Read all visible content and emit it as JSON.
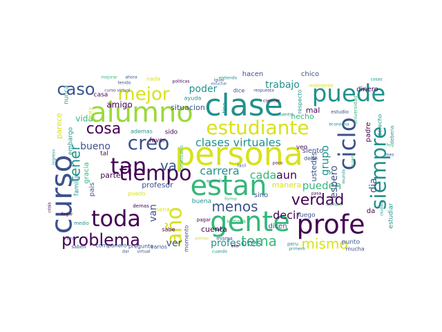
{
  "wordcloud": {
    "palette": {
      "dark_purple": "#440154",
      "indigo": "#3b528b",
      "teal": "#21918c",
      "green": "#35b779",
      "lime": "#9bd93c",
      "yellow": "#d8e219"
    },
    "words": [
      {
        "text": "persona",
        "color": "#d8e219"
      },
      {
        "text": "clase",
        "color": "#21918c"
      },
      {
        "text": "alumno",
        "color": "#9bd93c"
      },
      {
        "text": "gente",
        "color": "#35b779"
      },
      {
        "text": "profe",
        "color": "#440154"
      },
      {
        "text": "estan",
        "color": "#35b779"
      },
      {
        "text": "curso",
        "color": "#3b528b"
      },
      {
        "text": "puede",
        "color": "#21918c"
      },
      {
        "text": "estudiante",
        "color": "#d8e219"
      },
      {
        "text": "toda",
        "color": "#440154"
      },
      {
        "text": "tiempo",
        "color": "#440154"
      },
      {
        "text": "ciclo",
        "color": "#3b528b"
      },
      {
        "text": "siempre",
        "color": "#21918c"
      },
      {
        "text": "año",
        "color": "#d8e219"
      },
      {
        "text": "tan",
        "color": "#440154"
      },
      {
        "text": "creo",
        "color": "#3b528b"
      },
      {
        "text": "mejor",
        "color": "#d8e219"
      },
      {
        "text": "caso",
        "color": "#3b528b"
      },
      {
        "text": "problema",
        "color": "#440154"
      },
      {
        "text": "tener",
        "color": "#21918c"
      },
      {
        "text": "cosa",
        "color": "#440154"
      },
      {
        "text": "verdad",
        "color": "#440154"
      },
      {
        "text": "mismo",
        "color": "#d8e219"
      },
      {
        "text": "tema",
        "color": "#35b779"
      },
      {
        "text": "menos",
        "color": "#3b528b"
      },
      {
        "text": "va",
        "color": "#3b528b"
      },
      {
        "text": "clases virtuales",
        "color": "#21918c"
      },
      {
        "text": "carrera",
        "color": "#21918c"
      },
      {
        "text": "cada",
        "color": "#35b779"
      },
      {
        "text": "aun",
        "color": "#440154"
      },
      {
        "text": "pueden",
        "color": "#35b779"
      },
      {
        "text": "decir",
        "color": "#440154"
      },
      {
        "text": "grupo",
        "color": "#21918c"
      },
      {
        "text": "bueno",
        "color": "#3b528b"
      },
      {
        "text": "ver",
        "color": "#3b528b"
      },
      {
        "text": "profesores",
        "color": "#21918c"
      },
      {
        "text": "van",
        "color": "#3b528b"
      },
      {
        "text": "trabajo",
        "color": "#21918c"
      },
      {
        "text": "poder",
        "color": "#21918c"
      },
      {
        "text": "espero",
        "color": "#3b528b"
      },
      {
        "text": "dia",
        "color": "#3b528b"
      },
      {
        "text": "parece",
        "color": "#d8e219"
      },
      {
        "text": "vida",
        "color": "#35b779"
      },
      {
        "text": "amigo",
        "color": "#440154"
      },
      {
        "text": "situacion",
        "color": "#3b528b"
      },
      {
        "text": "hecho",
        "color": "#35b779"
      },
      {
        "text": "mal",
        "color": "#440154"
      },
      {
        "text": "siento",
        "color": "#3b528b"
      },
      {
        "text": "parte",
        "color": "#440154"
      },
      {
        "text": "profesor",
        "color": "#3b528b"
      },
      {
        "text": "manera",
        "color": "#d8e219"
      },
      {
        "text": "cuenta",
        "color": "#440154"
      },
      {
        "text": "ustedes",
        "color": "#3b528b"
      },
      {
        "text": "padre",
        "color": "#440154"
      },
      {
        "text": "hacen",
        "color": "#3b528b"
      },
      {
        "text": "chico",
        "color": "#3b528b"
      },
      {
        "text": "dinero",
        "color": "#440154"
      },
      {
        "text": "sino",
        "color": "#3b528b"
      },
      {
        "text": "luego",
        "color": "#3b528b"
      },
      {
        "text": "dicen",
        "color": "#3b528b"
      },
      {
        "text": "nunca",
        "color": "#21918c"
      },
      {
        "text": "casa",
        "color": "#440154"
      },
      {
        "text": "embargo",
        "color": "#21918c"
      },
      {
        "text": "familia",
        "color": "#21918c"
      },
      {
        "text": "gracia",
        "color": "#35b779"
      },
      {
        "text": "pais",
        "color": "#3b528b"
      },
      {
        "text": "favor",
        "color": "#440154"
      },
      {
        "text": "tal",
        "color": "#440154"
      },
      {
        "text": "sido",
        "color": "#440154"
      },
      {
        "text": "buena",
        "color": "#21918c"
      },
      {
        "text": "momento",
        "color": "#3b528b"
      },
      {
        "text": "compañero",
        "color": "#3b528b"
      },
      {
        "text": "pregunta",
        "color": "#3b528b"
      },
      {
        "text": "punto",
        "color": "#3b528b"
      },
      {
        "text": "mucha",
        "color": "#3b528b"
      },
      {
        "text": "veo",
        "color": "#440154"
      },
      {
        "text": "da",
        "color": "#440154"
      },
      {
        "text": "estudiar",
        "color": "#21918c"
      },
      {
        "text": "debe",
        "color": "#3b528b"
      },
      {
        "text": "nada",
        "color": "#d8e219"
      },
      {
        "text": "dice",
        "color": "#3b528b"
      },
      {
        "text": "tipo",
        "color": "#21918c"
      },
      {
        "text": "ayuda",
        "color": "#21918c"
      },
      {
        "text": "respecto",
        "color": "#21918c"
      },
      {
        "text": "ademas",
        "color": "#21918c"
      },
      {
        "text": "varios",
        "color": "#3b528b"
      },
      {
        "text": "saben",
        "color": "#3b528b"
      },
      {
        "text": "misma",
        "color": "#3b528b"
      },
      {
        "text": "sabe",
        "color": "#440154"
      },
      {
        "text": "seria",
        "color": "#d8e219"
      },
      {
        "text": "puedo",
        "color": "#d8e219"
      },
      {
        "text": "semana",
        "color": "#35b779"
      },
      {
        "text": "cuando",
        "color": "#21918c"
      },
      {
        "text": "realmente",
        "color": "#d8e219"
      },
      {
        "text": "deberia",
        "color": "#21918c"
      },
      {
        "text": "estudio",
        "color": "#3b528b"
      },
      {
        "text": "universidad",
        "color": "#35b779"
      },
      {
        "text": "derecho",
        "color": "#21918c"
      },
      {
        "text": "peru",
        "color": "#21918c"
      },
      {
        "text": "medio",
        "color": "#21918c"
      },
      {
        "text": "demas",
        "color": "#440154"
      },
      {
        "text": "pagar",
        "color": "#440154"
      },
      {
        "text": "economia",
        "color": "#21918c"
      },
      {
        "text": "primero",
        "color": "#21918c"
      },
      {
        "text": "politicas",
        "color": "#440154"
      },
      {
        "text": "tenido",
        "color": "#3b528b"
      },
      {
        "text": "ahora",
        "color": "#3b528b"
      },
      {
        "text": "pasa",
        "color": "#440154"
      },
      {
        "text": "quiero",
        "color": "#35b779"
      },
      {
        "text": "mejorar",
        "color": "#35b779"
      },
      {
        "text": "comentario",
        "color": "#35b779"
      },
      {
        "text": "ello",
        "color": "#440154"
      },
      {
        "text": "fácil",
        "color": "#3b528b"
      },
      {
        "text": "igual",
        "color": "#3b528b"
      },
      {
        "text": "virtual",
        "color": "#3b528b"
      },
      {
        "text": "dar",
        "color": "#3b528b"
      },
      {
        "text": "aprender",
        "color": "#21918c"
      },
      {
        "text": "forma",
        "color": "#35b779"
      },
      {
        "text": "pienso",
        "color": "#d8e219"
      },
      {
        "text": "escuchar",
        "color": "#3b528b"
      },
      {
        "text": "entiendo",
        "color": "#21918c"
      },
      {
        "text": "conocer",
        "color": "#440154"
      },
      {
        "text": "respuesta",
        "color": "#3b528b"
      },
      {
        "text": "encuentro",
        "color": "#21918c"
      },
      {
        "text": "ingreso",
        "color": "#21918c"
      },
      {
        "text": "cambio",
        "color": "#35b779"
      },
      {
        "text": "ciudad",
        "color": "#21918c"
      },
      {
        "text": "crisis",
        "color": "#440154"
      },
      {
        "text": "llegar",
        "color": "#440154"
      },
      {
        "text": "hora",
        "color": "#3b528b"
      },
      {
        "text": "mundo",
        "color": "#21918c"
      },
      {
        "text": "nota",
        "color": "#d8e219"
      },
      {
        "text": "curso virtual",
        "color": "#3b528b"
      },
      {
        "text": "cosas",
        "color": "#21918c"
      },
      {
        "text": "poco",
        "color": "#440154"
      },
      {
        "text": "hoy",
        "color": "#35b779"
      },
      {
        "text": "mes",
        "color": "#3b528b"
      }
    ]
  }
}
